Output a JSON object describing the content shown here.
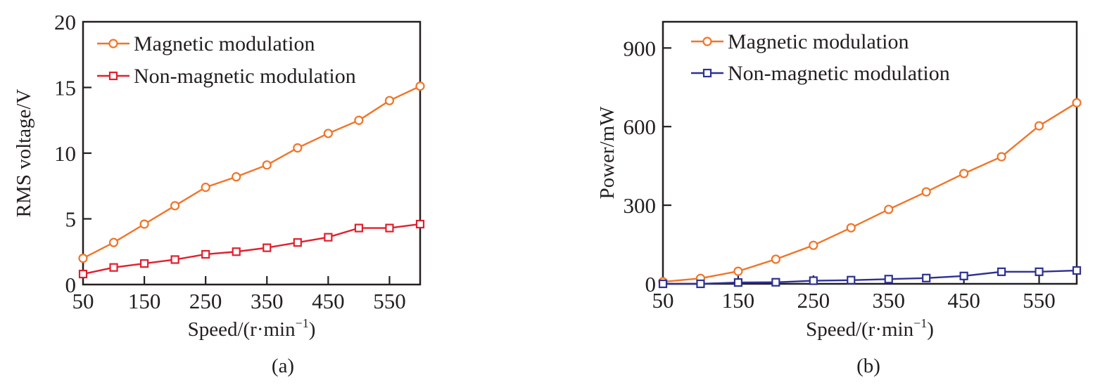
{
  "chart_data": [
    {
      "type": "line",
      "panel": "(a)",
      "caption": "(a)",
      "title": "",
      "xlabel": "Speed/(r·min",
      "xlabel_sup": "−1",
      "xlabel_close": ")",
      "ylabel": "RMS voltage/V",
      "x": [
        50,
        100,
        150,
        200,
        250,
        300,
        350,
        400,
        450,
        500,
        550,
        600
      ],
      "xlim": [
        50,
        600
      ],
      "ylim": [
        0,
        20
      ],
      "xticks": [
        50,
        150,
        250,
        350,
        450,
        550
      ],
      "xtick_labels": [
        "50",
        "150",
        "250",
        "350",
        "450",
        "550"
      ],
      "yticks": [
        0,
        5,
        10,
        15,
        20
      ],
      "ytick_labels": [
        "0",
        "5",
        "10",
        "15",
        "20"
      ],
      "grid": false,
      "legend_position": "top-left",
      "series": [
        {
          "name": "Magnetic modulation",
          "color": "#f07528",
          "marker": "circle",
          "values": [
            2.0,
            3.2,
            4.6,
            6.0,
            7.4,
            8.2,
            9.1,
            10.4,
            11.5,
            12.5,
            14.0,
            15.1
          ]
        },
        {
          "name": "Non-magnetic modulation",
          "color": "#e0202e",
          "marker": "square",
          "values": [
            0.8,
            1.3,
            1.6,
            1.9,
            2.3,
            2.5,
            2.8,
            3.2,
            3.6,
            4.3,
            4.3,
            4.6
          ]
        }
      ]
    },
    {
      "type": "line",
      "panel": "(b)",
      "caption": "(b)",
      "title": "",
      "xlabel": "Speed/(r·min",
      "xlabel_sup": "−1",
      "xlabel_close": ")",
      "ylabel": "Power/mW",
      "x": [
        50,
        100,
        150,
        200,
        250,
        300,
        350,
        400,
        450,
        500,
        550,
        600
      ],
      "xlim": [
        50,
        600
      ],
      "ylim": [
        0,
        1000
      ],
      "xticks": [
        50,
        150,
        250,
        350,
        450,
        550
      ],
      "xtick_labels": [
        "50",
        "150",
        "250",
        "350",
        "450",
        "550"
      ],
      "yticks": [
        0,
        300,
        600,
        900
      ],
      "ytick_labels": [
        "0",
        "300",
        "600",
        "900"
      ],
      "grid": false,
      "legend_position": "top-left",
      "series": [
        {
          "name": "Magnetic modulation",
          "color": "#f07528",
          "marker": "circle",
          "values": [
            8,
            21,
            48,
            94,
            147,
            214,
            284,
            351,
            421,
            485,
            603,
            691
          ]
        },
        {
          "name": "Non-magnetic modulation",
          "color": "#2e3192",
          "marker": "square",
          "values": [
            0,
            0,
            5,
            6,
            12,
            14,
            18,
            22,
            30,
            46,
            46,
            51
          ]
        }
      ]
    }
  ]
}
